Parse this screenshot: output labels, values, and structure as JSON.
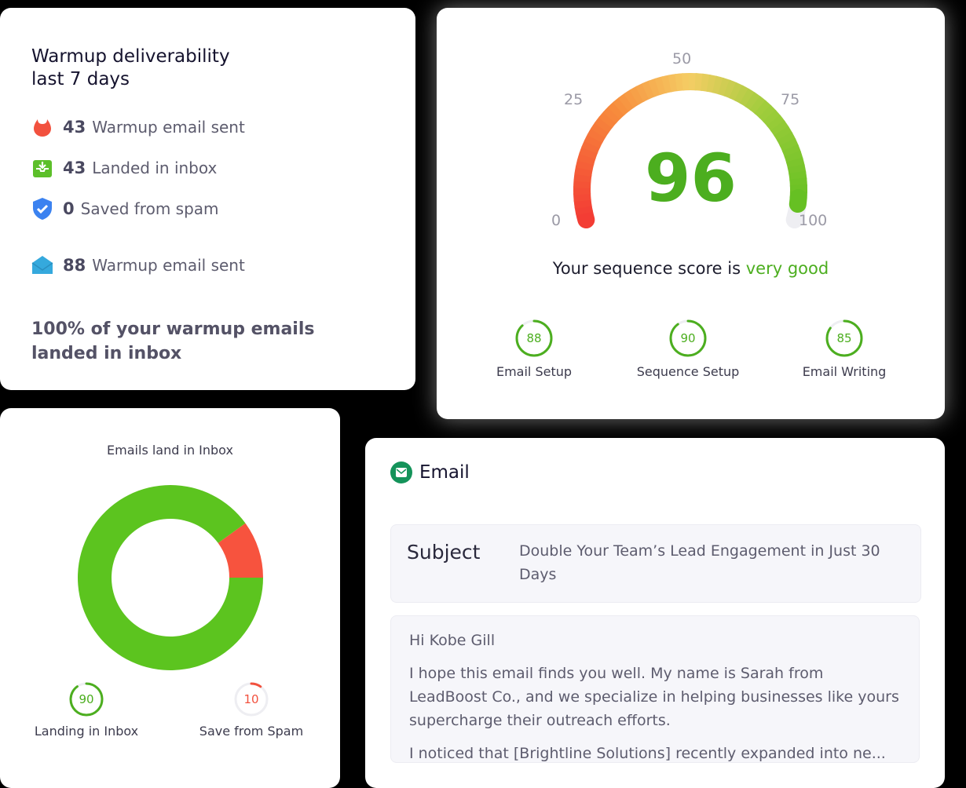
{
  "warmup": {
    "title_line1": "Warmup deliverability",
    "title_line2": "last 7 days",
    "stats": [
      {
        "icon": "fire-icon",
        "value": "43",
        "label": "Warmup email sent",
        "color": "#f2513e"
      },
      {
        "icon": "inbox-download-icon",
        "value": "43",
        "label": "Landed in inbox",
        "color": "#5cbf2a"
      },
      {
        "icon": "shield-check-icon",
        "value": "0",
        "label": "Saved from spam",
        "color": "#3b82f0"
      },
      {
        "icon": "envelope-icon",
        "value": "88",
        "label": "Warmup email sent",
        "color": "#35a9dd"
      }
    ],
    "summary": "100% of your warmup emails landed in inbox"
  },
  "sequence_score": {
    "gauge_labels": [
      "0",
      "25",
      "50",
      "75",
      "100"
    ],
    "score": "96",
    "score_value": 96,
    "text_prefix": "Your sequence score is",
    "text_rating": "very good",
    "subscores": [
      {
        "value": "88",
        "label": "Email Setup"
      },
      {
        "value": "90",
        "label": "Sequence Setup"
      },
      {
        "value": "85",
        "label": "Email Writing"
      }
    ],
    "colors": {
      "good": "#4cae1f",
      "track": "#eeeef2"
    }
  },
  "inbox_chart": {
    "title": "Emails land in Inbox",
    "chart_data": {
      "type": "pie",
      "donut": true,
      "categories": [
        "Landing in Inbox",
        "Save from Spam"
      ],
      "values": [
        90,
        10
      ],
      "colors": [
        "#5cc41f",
        "#f7533e"
      ]
    },
    "legend": [
      {
        "value": "90",
        "label": "Landing in Inbox",
        "color": "#4cae1f"
      },
      {
        "value": "10",
        "label": "Save from Spam",
        "color": "#f2513e"
      }
    ]
  },
  "email": {
    "header": "Email",
    "subject_label": "Subject",
    "subject": "Double Your Team’s Lead Engagement in Just 30 Days",
    "body": [
      "Hi Kobe Gill",
      "I hope this email finds you well. My name is Sarah from LeadBoost Co., and we specialize in helping businesses like yours supercharge their outreach efforts.",
      "I noticed that [Brightline Solutions] recently expanded into ne..."
    ]
  }
}
